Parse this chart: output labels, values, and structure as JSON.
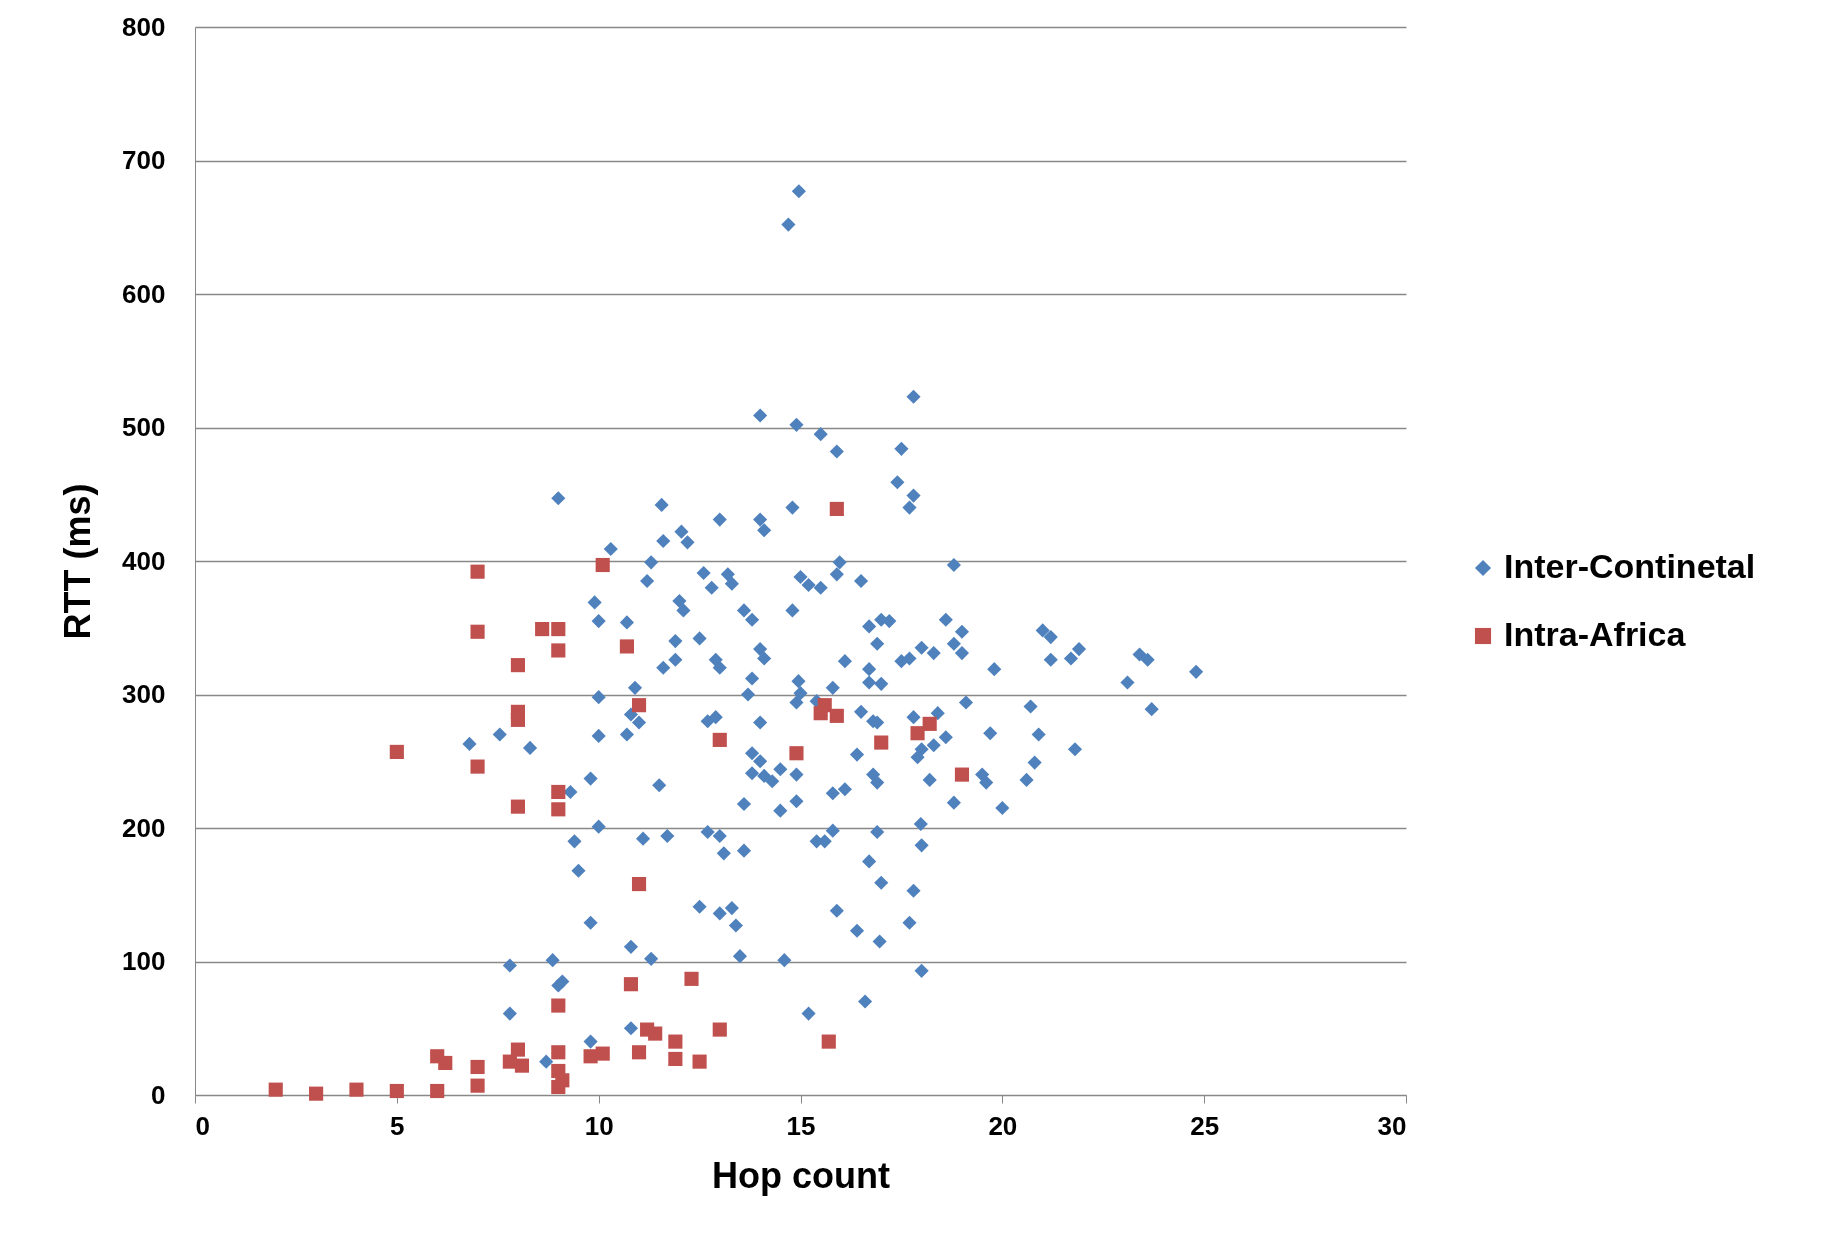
{
  "chart_data": {
    "type": "scatter",
    "xlabel": "Hop count",
    "ylabel": "RTT (ms)",
    "xlim": [
      0,
      30
    ],
    "xticks": [
      0,
      5,
      10,
      15,
      20,
      25,
      30
    ],
    "ylim": [
      0,
      800
    ],
    "yticks": [
      0,
      100,
      200,
      300,
      400,
      500,
      600,
      700,
      800
    ],
    "grid": "y",
    "legend": "right",
    "series": [
      {
        "name": "Inter-Continetal",
        "color": "#4f81bd",
        "marker": "diamond",
        "x": [
          14.96,
          14.7,
          17.8,
          14.0,
          14.9,
          15.5,
          15.9,
          17.5,
          17.4,
          17.8,
          17.7,
          9.0,
          11.56,
          14.8,
          14.0,
          13.0,
          14.1,
          12.05,
          12.2,
          11.6,
          10.3,
          18.8,
          15.97,
          11.3,
          15.9,
          15.0,
          12.6,
          13.2,
          11.2,
          16.5,
          12.8,
          13.3,
          15.2,
          15.5,
          9.9,
          14.8,
          12.0,
          12.1,
          13.6,
          13.8,
          10.0,
          10.7,
          17.2,
          16.7,
          17.0,
          18.6,
          19.0,
          21.0,
          21.2,
          12.5,
          11.9,
          14.0,
          16.9,
          18.8,
          18.0,
          18.3,
          19.0,
          21.9,
          21.7,
          21.2,
          23.4,
          23.6,
          14.1,
          11.9,
          12.9,
          13.0,
          16.1,
          17.5,
          17.7,
          16.7,
          11.6,
          19.8,
          24.8,
          23.1,
          16.7,
          17.0,
          14.95,
          13.8,
          15.0,
          15.8,
          10.9,
          13.7,
          10.0,
          19.1,
          14.9,
          20.7,
          15.4,
          23.7,
          16.5,
          10.8,
          12.9,
          12.7,
          16.8,
          14.0,
          18.4,
          16.9,
          17.8,
          11.0,
          10.7,
          10.0,
          19.7,
          20.9,
          7.55,
          6.8,
          18.6,
          18.3,
          8.3,
          21.8,
          13.8,
          18.0,
          17.9,
          16.4,
          14.0,
          20.8,
          14.5,
          13.8,
          14.1,
          14.9,
          16.8,
          19.5,
          18.2,
          14.3,
          16.9,
          19.6,
          20.6,
          11.5,
          9.8,
          9.3,
          16.1,
          15.8,
          13.6,
          14.9,
          18.8,
          14.5,
          20.0,
          10.0,
          17.98,
          16.9,
          12.7,
          13.0,
          11.1,
          11.7,
          15.4,
          15.6,
          15.8,
          9.4,
          18.0,
          13.1,
          13.6,
          16.7,
          9.5,
          17.0,
          17.8,
          13.3,
          12.5,
          13.0,
          15.9,
          17.7,
          9.8,
          13.4,
          16.4,
          16.96,
          10.8,
          13.5,
          11.3,
          14.6,
          8.86,
          7.8,
          18.0,
          9.1,
          9.0,
          16.6,
          15.2,
          7.8,
          10.8,
          9.8,
          8.7
        ],
        "values": [
          677,
          652,
          523,
          509,
          502,
          495,
          482,
          484,
          459,
          449,
          440,
          447,
          442,
          440,
          431,
          431,
          423,
          422,
          414,
          415,
          409,
          397,
          399,
          399,
          390,
          388,
          391,
          390,
          385,
          385,
          380,
          383,
          382,
          380,
          369,
          363,
          370,
          363,
          363,
          356,
          355,
          354,
          355,
          351,
          356,
          356,
          347,
          348,
          343,
          342,
          340,
          334,
          338,
          338,
          335,
          331,
          331,
          334,
          327,
          326,
          330,
          326,
          327,
          326,
          326,
          320,
          325,
          325,
          327,
          319,
          320,
          319,
          317,
          309,
          309,
          308,
          310,
          312,
          301,
          305,
          305,
          300,
          298,
          294,
          294,
          291,
          295,
          289,
          287,
          285,
          283,
          280,
          280,
          279,
          286,
          279,
          283,
          279,
          270,
          269,
          271,
          270,
          270,
          263,
          268,
          262,
          260,
          259,
          256,
          259,
          253,
          255,
          250,
          249,
          244,
          241,
          239,
          240,
          240,
          240,
          236,
          235,
          234,
          234,
          236,
          232,
          237,
          227,
          229,
          226,
          218,
          220,
          219,
          213,
          215,
          201,
          203,
          197,
          197,
          194,
          192,
          194,
          190,
          190,
          198,
          190,
          187,
          181,
          183,
          175,
          168,
          159,
          153,
          140,
          141,
          136,
          138,
          129,
          129,
          127,
          123,
          115,
          111,
          104,
          102,
          101,
          101,
          97,
          93,
          85,
          82,
          70,
          61,
          61,
          50,
          40,
          25
        ]
      },
      {
        "name": "Intra-Africa",
        "color": "#c0504d",
        "marker": "square",
        "x": [
          15.9,
          10.1,
          7.0,
          10.7,
          8.6,
          9.0,
          7.0,
          9.0,
          8.0,
          15.6,
          15.5,
          11.0,
          15.9,
          8.0,
          8.0,
          18.2,
          17.9,
          13.0,
          17.0,
          5.0,
          14.9,
          7.0,
          19.0,
          9.0,
          9.0,
          8.0,
          11.0,
          12.3,
          10.8,
          9.0,
          15.7,
          13.0,
          11.2,
          11.4,
          11.9,
          11.0,
          10.1,
          9.8,
          9.0,
          8.0,
          6.0,
          6.2,
          7.0,
          7.8,
          8.1,
          11.9,
          12.5,
          7.0,
          9.0,
          9.1,
          9.0,
          2.0,
          3.0,
          4.0,
          5.0,
          6.0
        ],
        "values": [
          439,
          397,
          392,
          336,
          349,
          349,
          347,
          333,
          322,
          292,
          286,
          292,
          284,
          287,
          281,
          278,
          271,
          266,
          264,
          257,
          256,
          246,
          240,
          227,
          214,
          216,
          158,
          87,
          83,
          67,
          40,
          49,
          49,
          46,
          40,
          32,
          31,
          29,
          32,
          34,
          29,
          24,
          21,
          25,
          22,
          27,
          25,
          7,
          18,
          11,
          6,
          4,
          1,
          4,
          3,
          3
        ]
      }
    ]
  }
}
